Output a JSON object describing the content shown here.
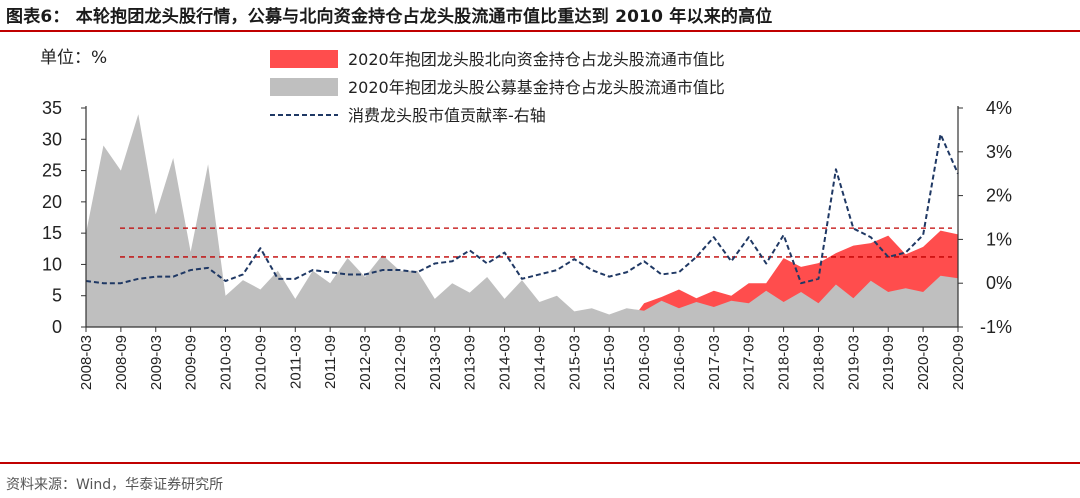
{
  "figure": {
    "title": "图表6：  本轮抱团龙头股行情，公募与北向资金持仓占龙头股流通市值比重达到 2010 年以来的高位",
    "source": "资料来源：Wind，华泰证券研究所",
    "unit_label": "单位：%"
  },
  "colors": {
    "rule": "#c00000",
    "northbound": "#ff4d4d",
    "fund": "#bfbfbf",
    "line": "#1f3864",
    "ref": "#c00000"
  },
  "chart_data": {
    "type": "area",
    "x": [
      "2008-03",
      "2008-06",
      "2008-09",
      "2008-12",
      "2009-03",
      "2009-06",
      "2009-09",
      "2009-12",
      "2010-03",
      "2010-06",
      "2010-09",
      "2010-12",
      "2011-03",
      "2011-06",
      "2011-09",
      "2011-12",
      "2012-03",
      "2012-06",
      "2012-09",
      "2012-12",
      "2013-03",
      "2013-06",
      "2013-09",
      "2013-12",
      "2014-03",
      "2014-06",
      "2014-09",
      "2014-12",
      "2015-03",
      "2015-06",
      "2015-09",
      "2015-12",
      "2016-03",
      "2016-06",
      "2016-09",
      "2016-12",
      "2017-03",
      "2017-06",
      "2017-09",
      "2017-12",
      "2018-03",
      "2018-06",
      "2018-09",
      "2018-12",
      "2019-03",
      "2019-06",
      "2019-09",
      "2019-12",
      "2020-03",
      "2020-06",
      "2020-09"
    ],
    "x_tick_labels": [
      "2008-03",
      "2008-09",
      "2009-03",
      "2009-09",
      "2010-03",
      "2010-09",
      "2011-03",
      "2011-09",
      "2012-03",
      "2012-09",
      "2013-03",
      "2013-09",
      "2014-03",
      "2014-09",
      "2015-03",
      "2015-09",
      "2016-03",
      "2016-09",
      "2017-03",
      "2017-09",
      "2018-03",
      "2018-09",
      "2019-03",
      "2019-09",
      "2020-03",
      "2020-09"
    ],
    "y_left": {
      "ticks": [
        "35",
        "30",
        "25",
        "20",
        "15",
        "10",
        "5",
        "0"
      ],
      "ylim": [
        0,
        35
      ]
    },
    "y_right": {
      "ticks": [
        "4%",
        "3%",
        "2%",
        "1%",
        "0%",
        "-1%"
      ],
      "ylim": [
        -1,
        4
      ]
    },
    "series": [
      {
        "name": "2020年抱团龙头股北向资金持仓占龙头股流通市值比",
        "axis": "left",
        "style": "area",
        "values": [
          0,
          0,
          0,
          0,
          0,
          0,
          0,
          0,
          0,
          0,
          0,
          0,
          0,
          0,
          0,
          0,
          0,
          0,
          0,
          0,
          0,
          0,
          0,
          0,
          0,
          0,
          0,
          0,
          0,
          0,
          0,
          0,
          3.8,
          4.8,
          6.0,
          4.6,
          5.8,
          5.0,
          7.0,
          7.0,
          11.0,
          9.6,
          10.2,
          11.8,
          13.0,
          13.4,
          14.6,
          11.6,
          12.8,
          15.4,
          14.8
        ]
      },
      {
        "name": "2020年抱团龙头股公募基金持仓占龙头股流通市值比",
        "axis": "left",
        "style": "area",
        "values": [
          15,
          29,
          25,
          34,
          18,
          27,
          12,
          26,
          5,
          7.5,
          6,
          9,
          4.5,
          9,
          7,
          11,
          8,
          11.5,
          9,
          9,
          4.5,
          7,
          5.5,
          8,
          4.5,
          7.5,
          4,
          5,
          2.5,
          3,
          2,
          3,
          2.6,
          4.2,
          3.0,
          4.0,
          3.2,
          4.2,
          3.8,
          5.8,
          4.0,
          5.6,
          3.8,
          6.8,
          4.6,
          7.4,
          5.6,
          6.2,
          5.6,
          8.2,
          7.8
        ]
      },
      {
        "name": "消费龙头股市值贡献率-右轴",
        "axis": "right",
        "style": "dashed-line",
        "values": [
          0.05,
          0.0,
          0.0,
          0.1,
          0.15,
          0.15,
          0.3,
          0.35,
          0.05,
          0.2,
          0.8,
          0.1,
          0.1,
          0.3,
          0.25,
          0.2,
          0.2,
          0.3,
          0.3,
          0.25,
          0.45,
          0.5,
          0.75,
          0.45,
          0.7,
          0.1,
          0.2,
          0.3,
          0.55,
          0.3,
          0.15,
          0.25,
          0.5,
          0.2,
          0.25,
          0.6,
          1.05,
          0.5,
          1.05,
          0.45,
          1.1,
          0.0,
          0.1,
          2.6,
          1.25,
          1.05,
          0.6,
          0.7,
          1.1,
          3.4,
          2.5
        ]
      }
    ],
    "reference_lines": [
      {
        "axis": "left",
        "value": 15.8
      },
      {
        "axis": "left",
        "value": 11.2
      }
    ],
    "legend_placement": "top-center",
    "grid": false
  }
}
